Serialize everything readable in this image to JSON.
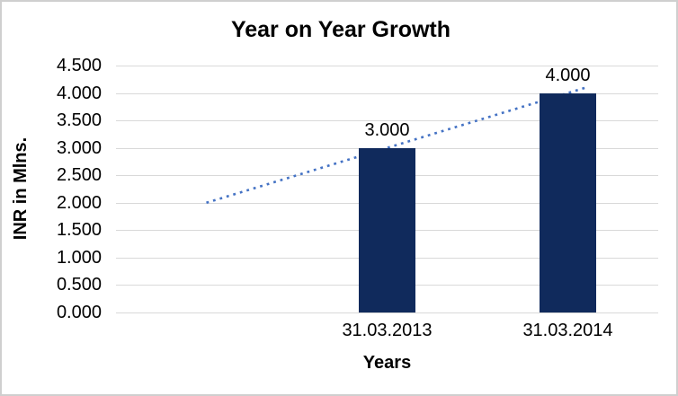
{
  "chart_data": {
    "type": "bar",
    "title": "Year on Year Growth",
    "xlabel": "Years",
    "ylabel": "INR in Mlns.",
    "ylim": [
      0,
      4.5
    ],
    "ytick_step": 0.5,
    "ytick_labels": [
      "4.500",
      "4.000",
      "3.500",
      "3.000",
      "2.500",
      "2.000",
      "1.500",
      "1.000",
      "0.500",
      "0.000"
    ],
    "grid": true,
    "legend": "none",
    "categories": [
      "",
      "31.03.2013",
      "31.03.2014"
    ],
    "series": [
      {
        "name": "INR in Mlns.",
        "type": "bar",
        "color": "#102a5c",
        "values": [
          null,
          3.0,
          4.0
        ],
        "data_labels": [
          "",
          "3.000",
          "4.000"
        ]
      },
      {
        "name": "linear-trendline",
        "type": "dotted-line",
        "color": "#4472c4",
        "values": [
          2.0,
          3.0,
          4.0
        ],
        "forecast_forward_periods": 0.095
      }
    ]
  }
}
